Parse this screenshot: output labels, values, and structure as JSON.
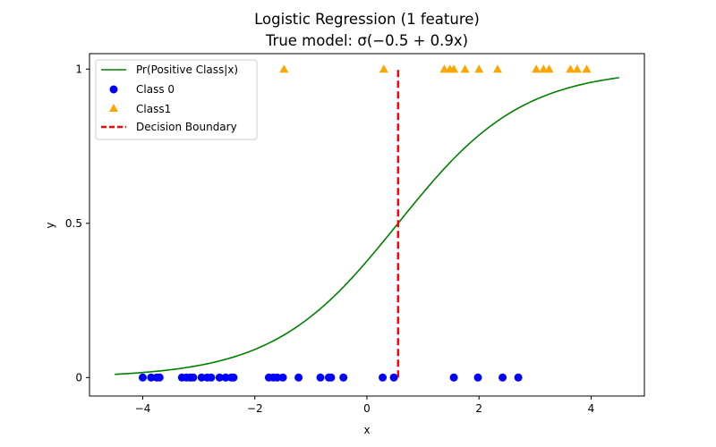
{
  "chart_data": {
    "type": "scatter",
    "title": "Logistic Regression (1 feature)",
    "subtitle": "True model: σ(−0.5 + 0.9x)",
    "xlabel": "x",
    "ylabel": "y",
    "xlim": [
      -4.95,
      4.95
    ],
    "ylim": [
      -0.06,
      1.05
    ],
    "x_ticks": [
      {
        "value": -4,
        "label": "−4"
      },
      {
        "value": -2,
        "label": "−2"
      },
      {
        "value": 0,
        "label": "0"
      },
      {
        "value": 2,
        "label": "2"
      },
      {
        "value": 4,
        "label": "4"
      }
    ],
    "y_ticks": [
      {
        "value": 0,
        "label": "0"
      },
      {
        "value": 0.5,
        "label": "0.5"
      },
      {
        "value": 1,
        "label": "1"
      }
    ],
    "grid": false,
    "legend_position": "top-left",
    "curve": {
      "name": "Pr(Positive Class|x)",
      "color": "#008000",
      "intercept": -0.5,
      "slope": 0.9,
      "x_range": [
        -4.5,
        4.5
      ]
    },
    "series": [
      {
        "name": "Class 0",
        "marker": "circle",
        "color": "#0000ff",
        "x": [
          -4.0,
          -3.85,
          -3.75,
          -3.7,
          -3.3,
          -3.22,
          -3.15,
          -3.1,
          -2.95,
          -2.85,
          -2.78,
          -2.63,
          -2.52,
          -2.42,
          -2.38,
          -1.75,
          -1.67,
          -1.6,
          -1.5,
          -1.22,
          -0.83,
          -0.68,
          -0.64,
          -0.42,
          0.28,
          0.48,
          1.55,
          1.98,
          2.42,
          2.7
        ],
        "y": [
          0,
          0,
          0,
          0,
          0,
          0,
          0,
          0,
          0,
          0,
          0,
          0,
          0,
          0,
          0,
          0,
          0,
          0,
          0,
          0,
          0,
          0,
          0,
          0,
          0,
          0,
          0,
          0,
          0,
          0
        ]
      },
      {
        "name": "Class1",
        "marker": "triangle",
        "color": "#ffa500",
        "x": [
          -1.48,
          0.3,
          1.38,
          1.48,
          1.55,
          1.75,
          2.0,
          2.33,
          3.02,
          3.15,
          3.25,
          3.63,
          3.75,
          3.92
        ],
        "y": [
          1,
          1,
          1,
          1,
          1,
          1,
          1,
          1,
          1,
          1,
          1,
          1,
          1,
          1
        ]
      }
    ],
    "decision_boundary": {
      "name": "Decision Boundary",
      "x": 0.5556,
      "y_range": [
        0,
        1
      ],
      "color": "#ff0000",
      "style": "dashed"
    }
  }
}
